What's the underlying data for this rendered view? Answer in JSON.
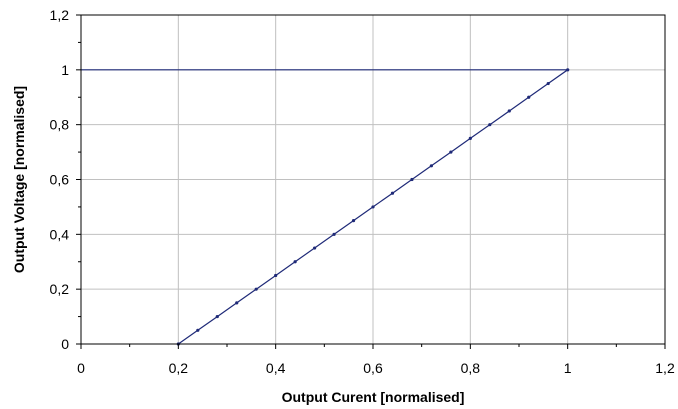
{
  "chart_data": {
    "type": "line",
    "xlabel": "Output Curent [normalised]",
    "ylabel": "Output Voltage [normalised]",
    "xlim": [
      0,
      1.2
    ],
    "ylim": [
      0,
      1.2
    ],
    "x_ticks": [
      "0",
      "0,2",
      "0,4",
      "0,6",
      "0,8",
      "1",
      "1,2"
    ],
    "y_ticks": [
      "0",
      "0,2",
      "0,4",
      "0,6",
      "0,8",
      "1",
      "1,2"
    ],
    "grid": true,
    "legend": "none",
    "colors": {
      "series": "#1f2a78",
      "grid": "#c0c0c0",
      "axis": "#000000"
    },
    "series": [
      {
        "values": [
          [
            0,
            1
          ],
          [
            1,
            1
          ],
          [
            0.96,
            0.95
          ],
          [
            0.92,
            0.9
          ],
          [
            0.88,
            0.85
          ],
          [
            0.84,
            0.8
          ],
          [
            0.8,
            0.75
          ],
          [
            0.76,
            0.7
          ],
          [
            0.72,
            0.65
          ],
          [
            0.68,
            0.6
          ],
          [
            0.64,
            0.55
          ],
          [
            0.6,
            0.5
          ],
          [
            0.56,
            0.45
          ],
          [
            0.52,
            0.4
          ],
          [
            0.48,
            0.35
          ],
          [
            0.44,
            0.3
          ],
          [
            0.4,
            0.25
          ],
          [
            0.36,
            0.2
          ],
          [
            0.32,
            0.15
          ],
          [
            0.28,
            0.1
          ],
          [
            0.24,
            0.05
          ],
          [
            0.2,
            0
          ]
        ],
        "marker_points": [
          [
            1,
            1
          ],
          [
            0.96,
            0.95
          ],
          [
            0.92,
            0.9
          ],
          [
            0.88,
            0.85
          ],
          [
            0.84,
            0.8
          ],
          [
            0.8,
            0.75
          ],
          [
            0.76,
            0.7
          ],
          [
            0.72,
            0.65
          ],
          [
            0.68,
            0.6
          ],
          [
            0.64,
            0.55
          ],
          [
            0.6,
            0.5
          ],
          [
            0.56,
            0.45
          ],
          [
            0.52,
            0.4
          ],
          [
            0.48,
            0.35
          ],
          [
            0.44,
            0.3
          ],
          [
            0.4,
            0.25
          ],
          [
            0.36,
            0.2
          ],
          [
            0.32,
            0.15
          ],
          [
            0.28,
            0.1
          ],
          [
            0.24,
            0.05
          ],
          [
            0.2,
            0
          ]
        ]
      }
    ]
  }
}
